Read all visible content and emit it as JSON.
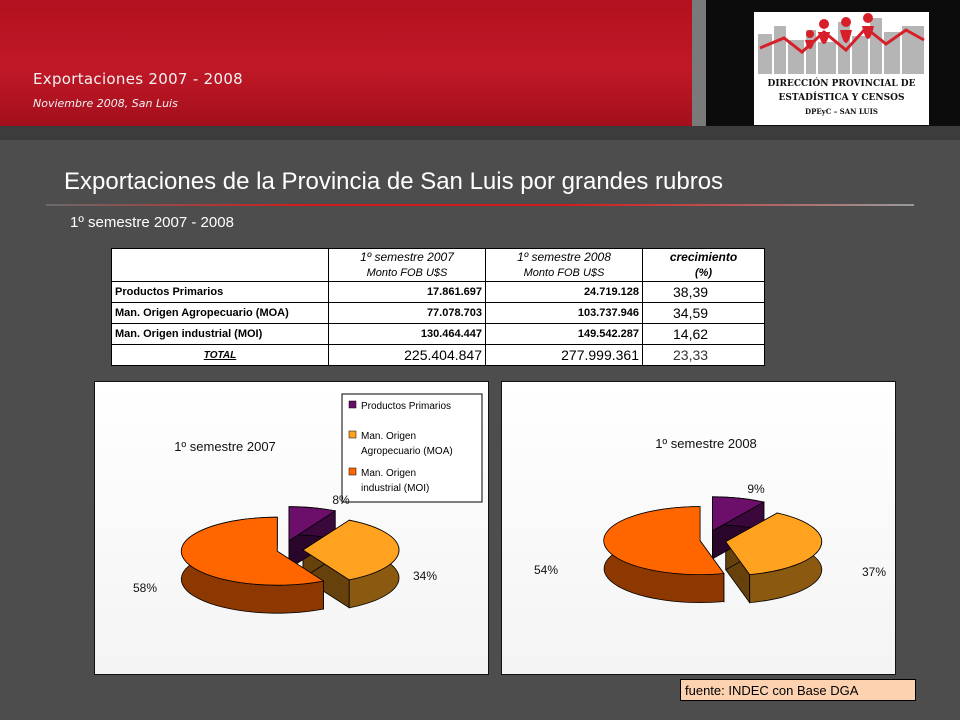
{
  "header": {
    "title": "Exportaciones 2007 - 2008",
    "subtitle": "Noviembre 2008, San Luis"
  },
  "logo": {
    "line1": "DIRECCIÓN PROVINCIAL DE",
    "line2": "ESTADÍSTICA Y CENSOS",
    "line3": "DPEyC – SAN LUIS"
  },
  "page": {
    "title": "Exportaciones de la Provincia de San Luis por grandes rubros",
    "subtitle": "1º semestre 2007 - 2008"
  },
  "table": {
    "headers": [
      {
        "line1": "1º semestre  2007",
        "line2": "Monto FOB U$S"
      },
      {
        "line1": "1º semestre  2008",
        "line2": "Monto FOB U$S"
      },
      {
        "line1": "crecimiento",
        "line2": "(%)"
      }
    ],
    "rows": [
      {
        "label": "Productos Primarios",
        "v2007": "17.861.697",
        "v2008": "24.719.128",
        "growth": "38,39"
      },
      {
        "label": "Man. Origen Agropecuario (MOA)",
        "v2007": "77.078.703",
        "v2008": "103.737.946",
        "growth": "34,59"
      },
      {
        "label": "Man. Origen industrial (MOI)",
        "v2007": "130.464.447",
        "v2008": "149.542.287",
        "growth": "14,62"
      }
    ],
    "total": {
      "label": "TOTAL",
      "v2007": "225.404.847",
      "v2008": "277.999.361",
      "growth": "23,33"
    }
  },
  "colors": {
    "primarios": "#6b0f6b",
    "moa": "#ffa21f",
    "moi": "#ff6600"
  },
  "chart_data": [
    {
      "type": "pie",
      "title": "1º semestre  2007",
      "categories": [
        "Productos Primarios",
        "Man. Origen Agropecuario (MOA)",
        "Man. Origen industrial (MOI)"
      ],
      "values": [
        8,
        34,
        58
      ],
      "labels": [
        "8%",
        "34%",
        "58%"
      ],
      "legend": {
        "position": "top-right",
        "entries": [
          "Productos Primarios",
          "Man. Origen Agropecuario (MOA)",
          "Man. Origen industrial (MOI)"
        ]
      }
    },
    {
      "type": "pie",
      "title": "1º semestre  2008",
      "categories": [
        "Productos Primarios",
        "Man. Origen Agropecuario (MOA)",
        "Man. Origen industrial (MOI)"
      ],
      "values": [
        9,
        37,
        54
      ],
      "labels": [
        "9%",
        "37%",
        "54%"
      ]
    }
  ],
  "legend_lines": {
    "primarios": [
      "Productos Primarios"
    ],
    "moa": [
      "Man. Origen",
      "Agropecuario (MOA)"
    ],
    "moi": [
      "Man. Origen",
      "industrial (MOI)"
    ]
  },
  "source": "fuente: INDEC con Base DGA"
}
